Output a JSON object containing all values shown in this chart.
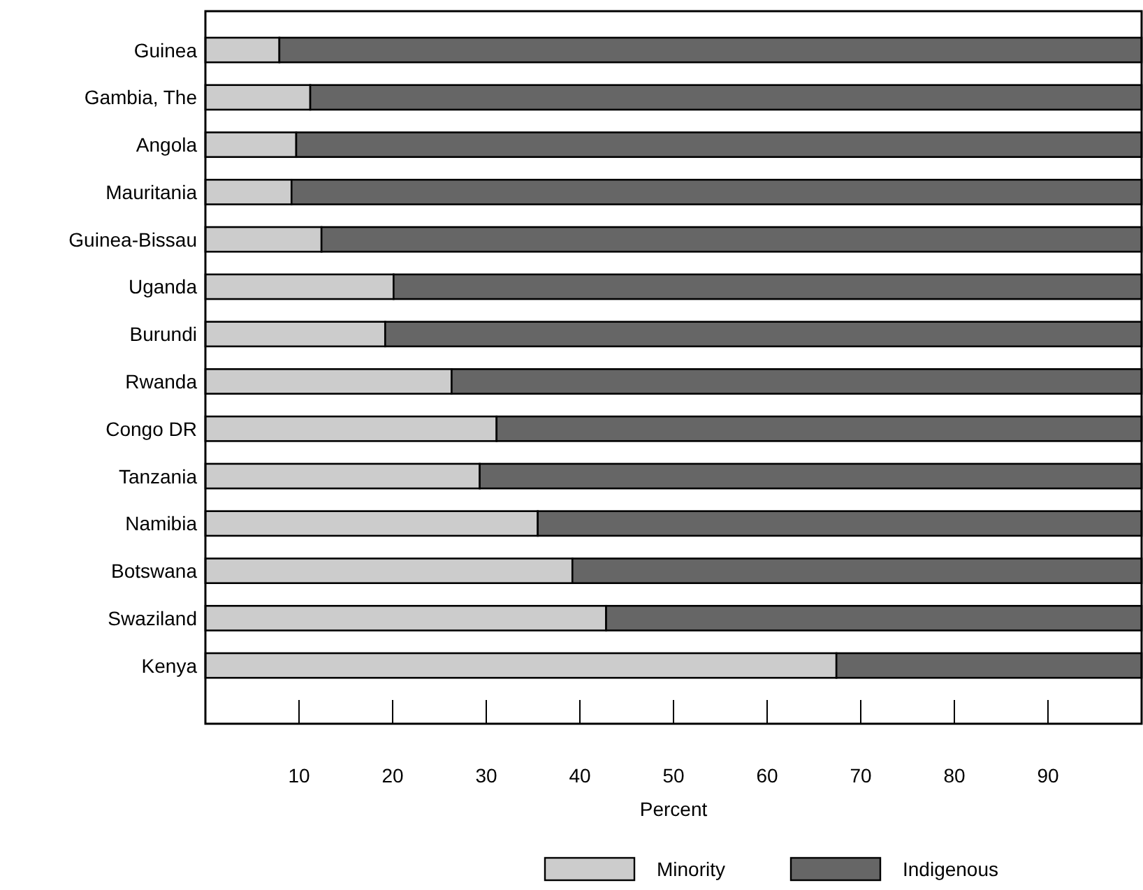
{
  "chart_data": {
    "type": "bar",
    "orientation": "horizontal",
    "stacked": true,
    "xlabel": "Percent",
    "categories": [
      "Guinea",
      "Gambia, The",
      "Angola",
      "Mauritania",
      "Guinea-Bissau",
      "Uganda",
      "Burundi",
      "Rwanda",
      "Congo DR",
      "Tanzania",
      "Namibia",
      "Botswana",
      "Swaziland",
      "Kenya"
    ],
    "series": [
      {
        "name": "Minority",
        "color": "#cccccc",
        "values": [
          7.9,
          11.2,
          9.7,
          9.2,
          12.4,
          20.1,
          19.2,
          26.3,
          31.1,
          29.3,
          35.5,
          39.2,
          42.8,
          67.4
        ]
      },
      {
        "name": "Indigenous",
        "color": "#666666",
        "values": [
          92.1,
          88.8,
          90.3,
          90.8,
          87.6,
          79.9,
          80.8,
          73.7,
          68.9,
          70.7,
          64.5,
          60.8,
          57.2,
          32.6
        ]
      }
    ],
    "xlim": [
      0,
      100
    ],
    "xticks": [
      10,
      20,
      30,
      40,
      50,
      60,
      70,
      80,
      90
    ],
    "legend": "bottom"
  }
}
